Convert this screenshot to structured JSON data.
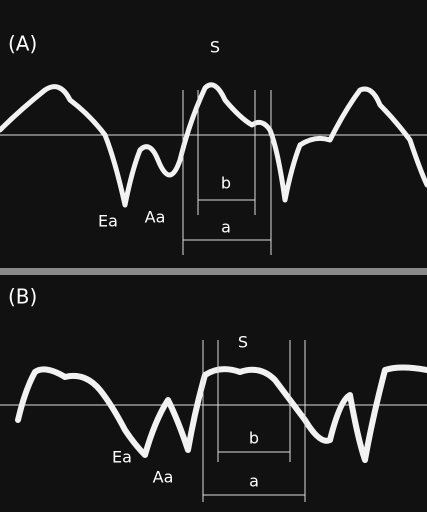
{
  "panels": [
    {
      "label": "(A)",
      "peak": "S",
      "early": "Ea",
      "late": "Aa",
      "interval_a": "a",
      "interval_b": "b"
    },
    {
      "label": "(B)",
      "peak": "S",
      "early": "Ea",
      "late": "Aa",
      "interval_a": "a",
      "interval_b": "b"
    }
  ]
}
